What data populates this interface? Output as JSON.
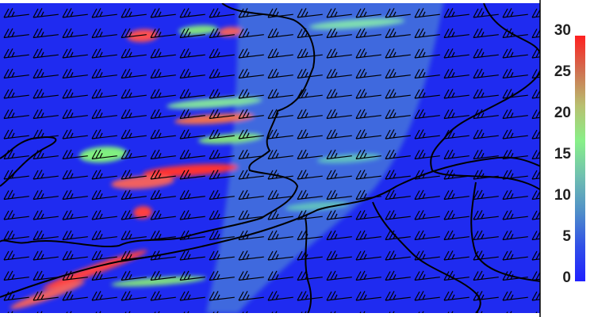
{
  "colorbar": {
    "ticks": [
      "0",
      "5",
      "10",
      "15",
      "20",
      "25",
      "30"
    ],
    "min": 0,
    "max": 30,
    "colors": [
      "#2020ff",
      "#3050e8",
      "#5090c8",
      "#70c0b0",
      "#88f088",
      "#b8c070",
      "#d07050",
      "#ff2020"
    ]
  },
  "map": {
    "background": "#1f2bf0",
    "coastline_color": "#000000",
    "barb_color": "#000000"
  }
}
